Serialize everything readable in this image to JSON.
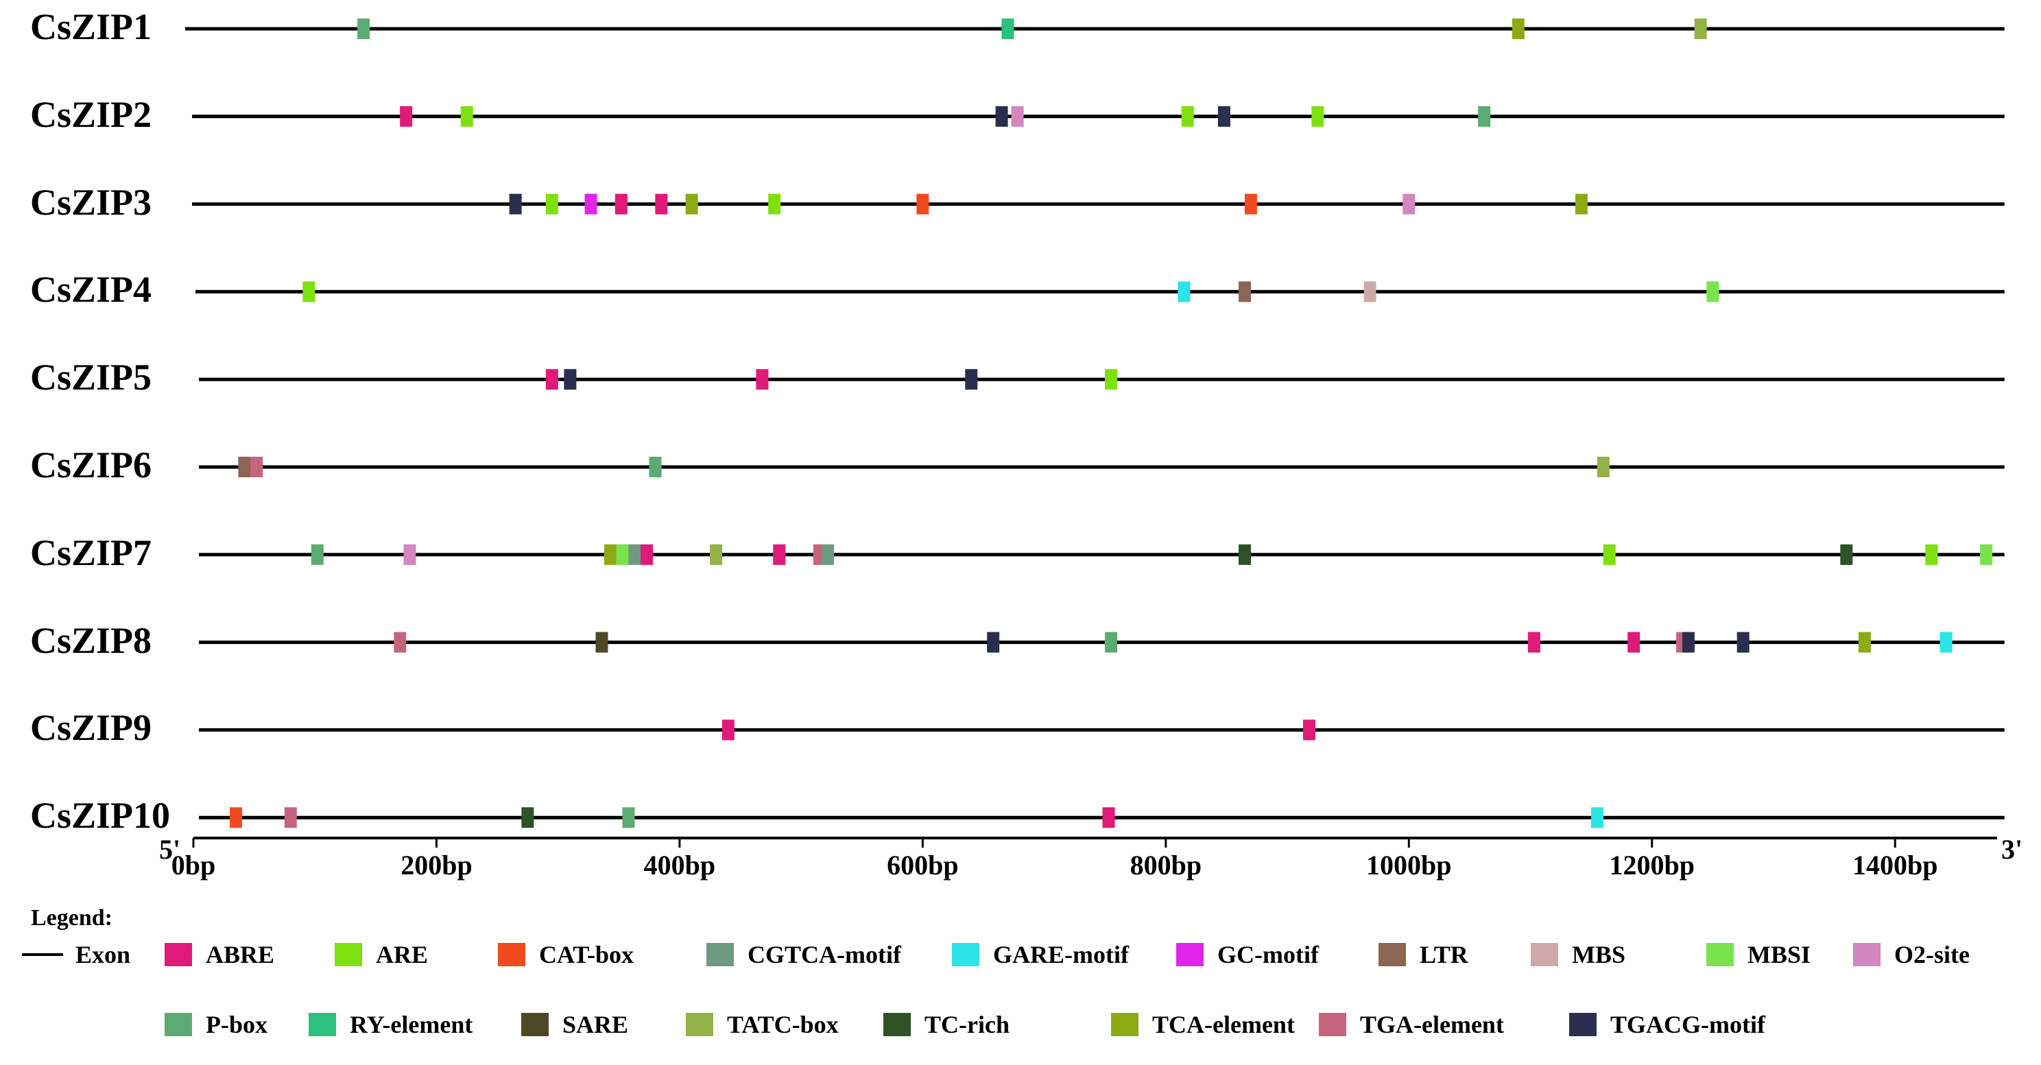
{
  "bp_max": 1480,
  "genes": [
    {
      "name": "CsZIP1",
      "length": 1490,
      "elements": [
        {
          "type": "P-box",
          "pos": 140
        },
        {
          "type": "RY-element",
          "pos": 670
        },
        {
          "type": "TCA-element",
          "pos": 1090
        },
        {
          "type": "TATC-box",
          "pos": 1240
        }
      ]
    },
    {
      "name": "CsZIP2",
      "length": 1490,
      "elements": [
        {
          "type": "ABRE",
          "pos": 175
        },
        {
          "type": "ARE",
          "pos": 225
        },
        {
          "type": "TGACG-motif",
          "pos": 665
        },
        {
          "type": "O2-site",
          "pos": 678
        },
        {
          "type": "ARE",
          "pos": 818
        },
        {
          "type": "TGACG-motif",
          "pos": 848
        },
        {
          "type": "ARE",
          "pos": 925
        },
        {
          "type": "P-box",
          "pos": 1062
        }
      ]
    },
    {
      "name": "CsZIP3",
      "length": 1490,
      "elements": [
        {
          "type": "TGACG-motif",
          "pos": 265
        },
        {
          "type": "ARE",
          "pos": 295
        },
        {
          "type": "GC-motif",
          "pos": 327
        },
        {
          "type": "ABRE",
          "pos": 352
        },
        {
          "type": "ABRE",
          "pos": 385
        },
        {
          "type": "TCA-element",
          "pos": 410
        },
        {
          "type": "ARE",
          "pos": 478
        },
        {
          "type": "CAT-box",
          "pos": 600
        },
        {
          "type": "CAT-box",
          "pos": 870
        },
        {
          "type": "O2-site",
          "pos": 1000
        },
        {
          "type": "TCA-element",
          "pos": 1142
        }
      ]
    },
    {
      "name": "CsZIP4",
      "length": 1490,
      "elements": [
        {
          "type": "ARE",
          "pos": 95
        },
        {
          "type": "GARE-motif",
          "pos": 815
        },
        {
          "type": "LTR",
          "pos": 865
        },
        {
          "type": "MBS",
          "pos": 968
        },
        {
          "type": "MBSI",
          "pos": 1250
        }
      ]
    },
    {
      "name": "CsZIP5",
      "length": 1490,
      "elements": [
        {
          "type": "ABRE",
          "pos": 295
        },
        {
          "type": "TGACG-motif",
          "pos": 310
        },
        {
          "type": "ABRE",
          "pos": 468
        },
        {
          "type": "TGACG-motif",
          "pos": 640
        },
        {
          "type": "ARE",
          "pos": 755
        }
      ]
    },
    {
      "name": "CsZIP6",
      "length": 1490,
      "elements": [
        {
          "type": "LTR",
          "pos": 42
        },
        {
          "type": "TGA-element",
          "pos": 52
        },
        {
          "type": "P-box",
          "pos": 380
        },
        {
          "type": "TATC-box",
          "pos": 1160
        }
      ]
    },
    {
      "name": "CsZIP7",
      "length": 1490,
      "elements": [
        {
          "type": "P-box",
          "pos": 102
        },
        {
          "type": "O2-site",
          "pos": 178
        },
        {
          "type": "TCA-element",
          "pos": 343
        },
        {
          "type": "MBSI",
          "pos": 353
        },
        {
          "type": "CGTCA-motif",
          "pos": 363
        },
        {
          "type": "ABRE",
          "pos": 373
        },
        {
          "type": "TATC-box",
          "pos": 430
        },
        {
          "type": "ABRE",
          "pos": 482
        },
        {
          "type": "TGA-element",
          "pos": 515
        },
        {
          "type": "CGTCA-motif",
          "pos": 522
        },
        {
          "type": "TC-rich",
          "pos": 865
        },
        {
          "type": "ARE",
          "pos": 1165
        },
        {
          "type": "TC-rich",
          "pos": 1360
        },
        {
          "type": "ARE",
          "pos": 1430
        },
        {
          "type": "MBSI",
          "pos": 1475
        }
      ]
    },
    {
      "name": "CsZIP8",
      "length": 1490,
      "elements": [
        {
          "type": "TGA-element",
          "pos": 170
        },
        {
          "type": "SARE",
          "pos": 336
        },
        {
          "type": "TGACG-motif",
          "pos": 658
        },
        {
          "type": "P-box",
          "pos": 755
        },
        {
          "type": "ABRE",
          "pos": 1103
        },
        {
          "type": "ABRE",
          "pos": 1185
        },
        {
          "type": "TGA-element",
          "pos": 1225
        },
        {
          "type": "TGACG-motif",
          "pos": 1230
        },
        {
          "type": "TGACG-motif",
          "pos": 1275
        },
        {
          "type": "TCA-element",
          "pos": 1375
        },
        {
          "type": "GARE-motif",
          "pos": 1442
        }
      ]
    },
    {
      "name": "CsZIP9",
      "length": 1490,
      "elements": [
        {
          "type": "ABRE",
          "pos": 440
        },
        {
          "type": "ABRE",
          "pos": 918
        }
      ]
    },
    {
      "name": "CsZIP10",
      "length": 1490,
      "elements": [
        {
          "type": "CAT-box",
          "pos": 35
        },
        {
          "type": "TGA-element",
          "pos": 80
        },
        {
          "type": "TC-rich",
          "pos": 275
        },
        {
          "type": "P-box",
          "pos": 358
        },
        {
          "type": "ABRE",
          "pos": 753
        },
        {
          "type": "GARE-motif",
          "pos": 1155
        }
      ]
    }
  ],
  "axis": {
    "start_label": "5'",
    "end_label": "3'",
    "ticks": [
      {
        "label": "0bp",
        "value": 0
      },
      {
        "label": "200bp",
        "value": 200
      },
      {
        "label": "400bp",
        "value": 400
      },
      {
        "label": "600bp",
        "value": 600
      },
      {
        "label": "800bp",
        "value": 800
      },
      {
        "label": "1000bp",
        "value": 1000
      },
      {
        "label": "1200bp",
        "value": 1200
      },
      {
        "label": "1400bp",
        "value": 1400
      }
    ]
  },
  "legend": {
    "title": "Legend:",
    "exon_label": "Exon",
    "items": [
      {
        "name": "ABRE",
        "color": "#E01A79"
      },
      {
        "name": "ARE",
        "color": "#7FE00F"
      },
      {
        "name": "CAT-box",
        "color": "#F04A1E"
      },
      {
        "name": "CGTCA-motif",
        "color": "#6F9A82"
      },
      {
        "name": "GARE-motif",
        "color": "#2CE3E8"
      },
      {
        "name": "GC-motif",
        "color": "#E024E8"
      },
      {
        "name": "LTR",
        "color": "#8B6652"
      },
      {
        "name": "MBS",
        "color": "#CFA9AA"
      },
      {
        "name": "MBSI",
        "color": "#7AE34C"
      },
      {
        "name": "O2-site",
        "color": "#D386BF"
      },
      {
        "name": "P-box",
        "color": "#5CAB72"
      },
      {
        "name": "RY-element",
        "color": "#2CC17E"
      },
      {
        "name": "SARE",
        "color": "#4E4826"
      },
      {
        "name": "TATC-box",
        "color": "#93B247"
      },
      {
        "name": "TC-rich",
        "color": "#2E5126"
      },
      {
        "name": "TCA-element",
        "color": "#8DAA14"
      },
      {
        "name": "TGA-element",
        "color": "#C5647E"
      },
      {
        "name": "TGACG-motif",
        "color": "#2B2E4E"
      }
    ]
  }
}
